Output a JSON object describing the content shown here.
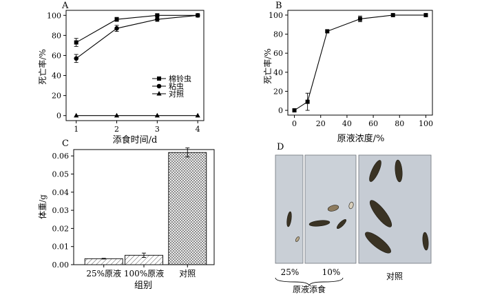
{
  "panels": {
    "a": "A",
    "b": "B",
    "c": "C",
    "d": "D"
  },
  "chart_data": [
    {
      "type": "line",
      "panel": "A",
      "xlabel": "添食时间/d",
      "ylabel": "死亡率/%",
      "x": [
        1,
        2,
        3,
        4
      ],
      "xlim": [
        0.75,
        4.15
      ],
      "ylim": [
        -5,
        105
      ],
      "xticks": [
        1,
        2,
        3,
        4
      ],
      "yticks": [
        0,
        20,
        40,
        60,
        80,
        100
      ],
      "legend_position": "center-right",
      "series": [
        {
          "name": "棉铃虫",
          "marker": "square",
          "values": [
            73,
            96,
            100,
            100
          ],
          "errors": [
            4,
            2,
            1,
            0
          ]
        },
        {
          "name": "粘虫",
          "marker": "circle",
          "values": [
            57,
            87,
            96,
            100
          ],
          "errors": [
            4,
            3,
            2,
            0
          ]
        },
        {
          "name": "对照",
          "marker": "triangle",
          "values": [
            0,
            0,
            0,
            0
          ],
          "errors": [
            0,
            0,
            0,
            0
          ]
        }
      ]
    },
    {
      "type": "line",
      "panel": "B",
      "xlabel": "原液浓度/%",
      "ylabel": "死亡率/%",
      "xlim": [
        -5,
        105
      ],
      "ylim": [
        -5,
        105
      ],
      "xticks": [
        0,
        20,
        40,
        60,
        80,
        100
      ],
      "yticks": [
        0,
        20,
        40,
        60,
        80,
        100
      ],
      "series": [
        {
          "marker": "square",
          "x": [
            0,
            10,
            25,
            50,
            75,
            100
          ],
          "values": [
            0,
            9,
            83,
            96,
            100,
            100
          ],
          "errors": [
            0,
            9,
            0,
            3,
            0,
            0
          ]
        }
      ]
    },
    {
      "type": "bar",
      "panel": "C",
      "xlabel": "组别",
      "ylabel": "体重/g",
      "categories": [
        "25%原液",
        "100%原液",
        "对照"
      ],
      "values": [
        0.0033,
        0.0052,
        0.0619
      ],
      "errors": [
        0.0002,
        0.0012,
        0.0025
      ],
      "fills": [
        "diagonal-hatch",
        "diagonal-hatch",
        "cross-hatch"
      ],
      "ylim": [
        0,
        0.0635
      ],
      "yticks": [
        "0.00",
        "0.01",
        "0.02",
        "0.03",
        "0.04",
        "0.05",
        "0.06"
      ]
    }
  ],
  "photo": {
    "labels": {
      "left": "25%",
      "middle": "10%",
      "group": "原液添食",
      "right": "对照"
    },
    "colors": {
      "background": "#c9cfd6",
      "border": "#6f747a",
      "larva": "#3a3324"
    }
  }
}
